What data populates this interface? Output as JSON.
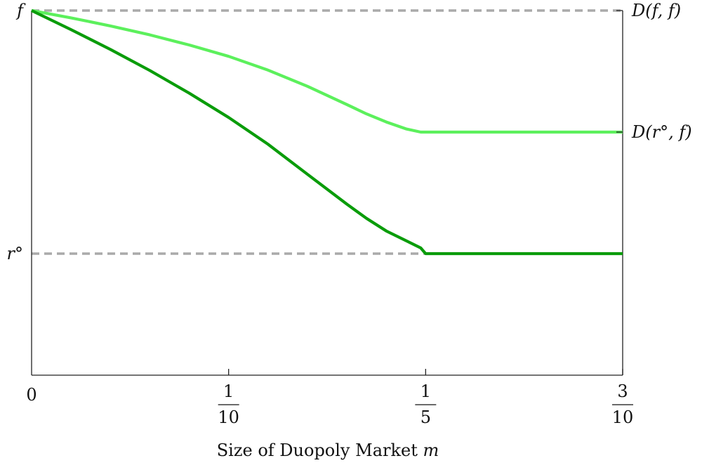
{
  "chart_data": {
    "type": "line",
    "title": "",
    "xlabel": "Size of Duopoly Market ",
    "xlabel_var": "m",
    "xlim": [
      0,
      0.3
    ],
    "ylim": [
      0,
      1
    ],
    "x_ticks": [
      {
        "value": 0,
        "label": "0"
      },
      {
        "value": 0.1,
        "num": "1",
        "den": "10"
      },
      {
        "value": 0.2,
        "num": "1",
        "den": "5"
      },
      {
        "value": 0.3,
        "num": "3",
        "den": "10"
      }
    ],
    "y_ticks_left": [
      {
        "value": 1.0,
        "label": "f"
      },
      {
        "value": 0.4,
        "label": "r°"
      }
    ],
    "y_ticks_right": [
      {
        "value": 1.0,
        "label": "D(f, f)"
      },
      {
        "value": 0.7,
        "label": "D(r°, f)"
      }
    ],
    "reference_lines": [
      {
        "y": 1.0,
        "style": "dashed",
        "color": "#aaaaaa"
      },
      {
        "y": 0.4,
        "style": "dashed",
        "color": "#aaaaaa",
        "x_range": [
          0,
          0.2
        ]
      }
    ],
    "grid": false,
    "series": [
      {
        "color": "#5cf05c",
        "points": [
          [
            0,
            1.0
          ],
          [
            0.02,
            0.982
          ],
          [
            0.04,
            0.962
          ],
          [
            0.06,
            0.94
          ],
          [
            0.08,
            0.915
          ],
          [
            0.1,
            0.887
          ],
          [
            0.12,
            0.853
          ],
          [
            0.14,
            0.813
          ],
          [
            0.16,
            0.768
          ],
          [
            0.17,
            0.745
          ],
          [
            0.18,
            0.725
          ],
          [
            0.19,
            0.708
          ],
          [
            0.1975,
            0.7
          ],
          [
            0.2,
            0.7
          ],
          [
            0.3,
            0.7
          ]
        ]
      },
      {
        "color": "#0a9c0a",
        "points": [
          [
            0,
            1.0
          ],
          [
            0.02,
            0.953
          ],
          [
            0.04,
            0.904
          ],
          [
            0.06,
            0.852
          ],
          [
            0.08,
            0.796
          ],
          [
            0.1,
            0.736
          ],
          [
            0.12,
            0.67
          ],
          [
            0.14,
            0.596
          ],
          [
            0.16,
            0.522
          ],
          [
            0.17,
            0.487
          ],
          [
            0.18,
            0.456
          ],
          [
            0.19,
            0.432
          ],
          [
            0.1975,
            0.414
          ],
          [
            0.2,
            0.4
          ],
          [
            0.3,
            0.4
          ]
        ]
      }
    ]
  }
}
